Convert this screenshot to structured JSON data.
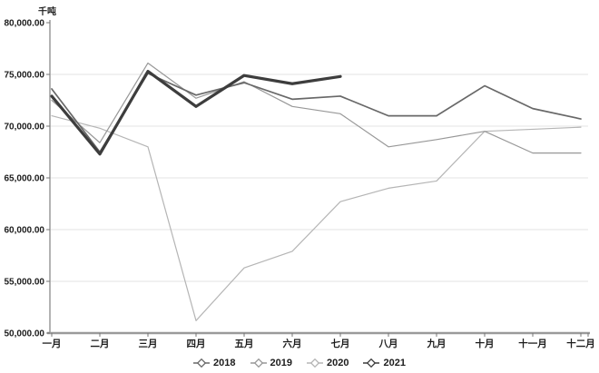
{
  "page": {
    "background": "#ffffff"
  },
  "chart_data": {
    "type": "line",
    "title": "",
    "unit_label": "千吨",
    "xlabel": "",
    "ylabel": "千吨",
    "categories": [
      "一月",
      "二月",
      "三月",
      "四月",
      "五月",
      "六月",
      "七月",
      "八月",
      "九月",
      "十月",
      "十一月",
      "十二月"
    ],
    "series": [
      {
        "name": "2020",
        "color": "#b5b5b5",
        "width": 1.2,
        "values": [
          71000,
          69800,
          68000,
          51200,
          56300,
          57900,
          62700,
          64000,
          64700,
          69500,
          69700,
          69900
        ]
      },
      {
        "name": "2019",
        "color": "#989898",
        "width": 1.2,
        "values": [
          72500,
          68400,
          76100,
          72700,
          74300,
          71900,
          71200,
          68000,
          68700,
          69500,
          67400,
          67400
        ]
      },
      {
        "name": "2018",
        "color": "#686868",
        "width": 1.7,
        "values": [
          73600,
          67500,
          75100,
          73000,
          74200,
          72600,
          72900,
          71000,
          71000,
          73900,
          71700,
          70700
        ]
      },
      {
        "name": "2021",
        "color": "#3d3d3d",
        "width": 3.2,
        "values": [
          72900,
          67300,
          75300,
          71900,
          74900,
          74100,
          74800
        ]
      }
    ],
    "legend": {
      "position": "bottom",
      "entries": [
        "2018",
        "2019",
        "2020",
        "2021"
      ]
    },
    "ylim": [
      50000,
      80000
    ],
    "ytick_step": 5000,
    "ytick_labels": [
      "80,000.00",
      "75,000.00",
      "70,000.00",
      "65,000.00",
      "60,000.00",
      "55,000.00",
      "50,000.00"
    ],
    "grid": true,
    "axis_color": "#9a9a9a",
    "grid_color": "#e3e3e3",
    "text_color": "#1c1c1c"
  }
}
